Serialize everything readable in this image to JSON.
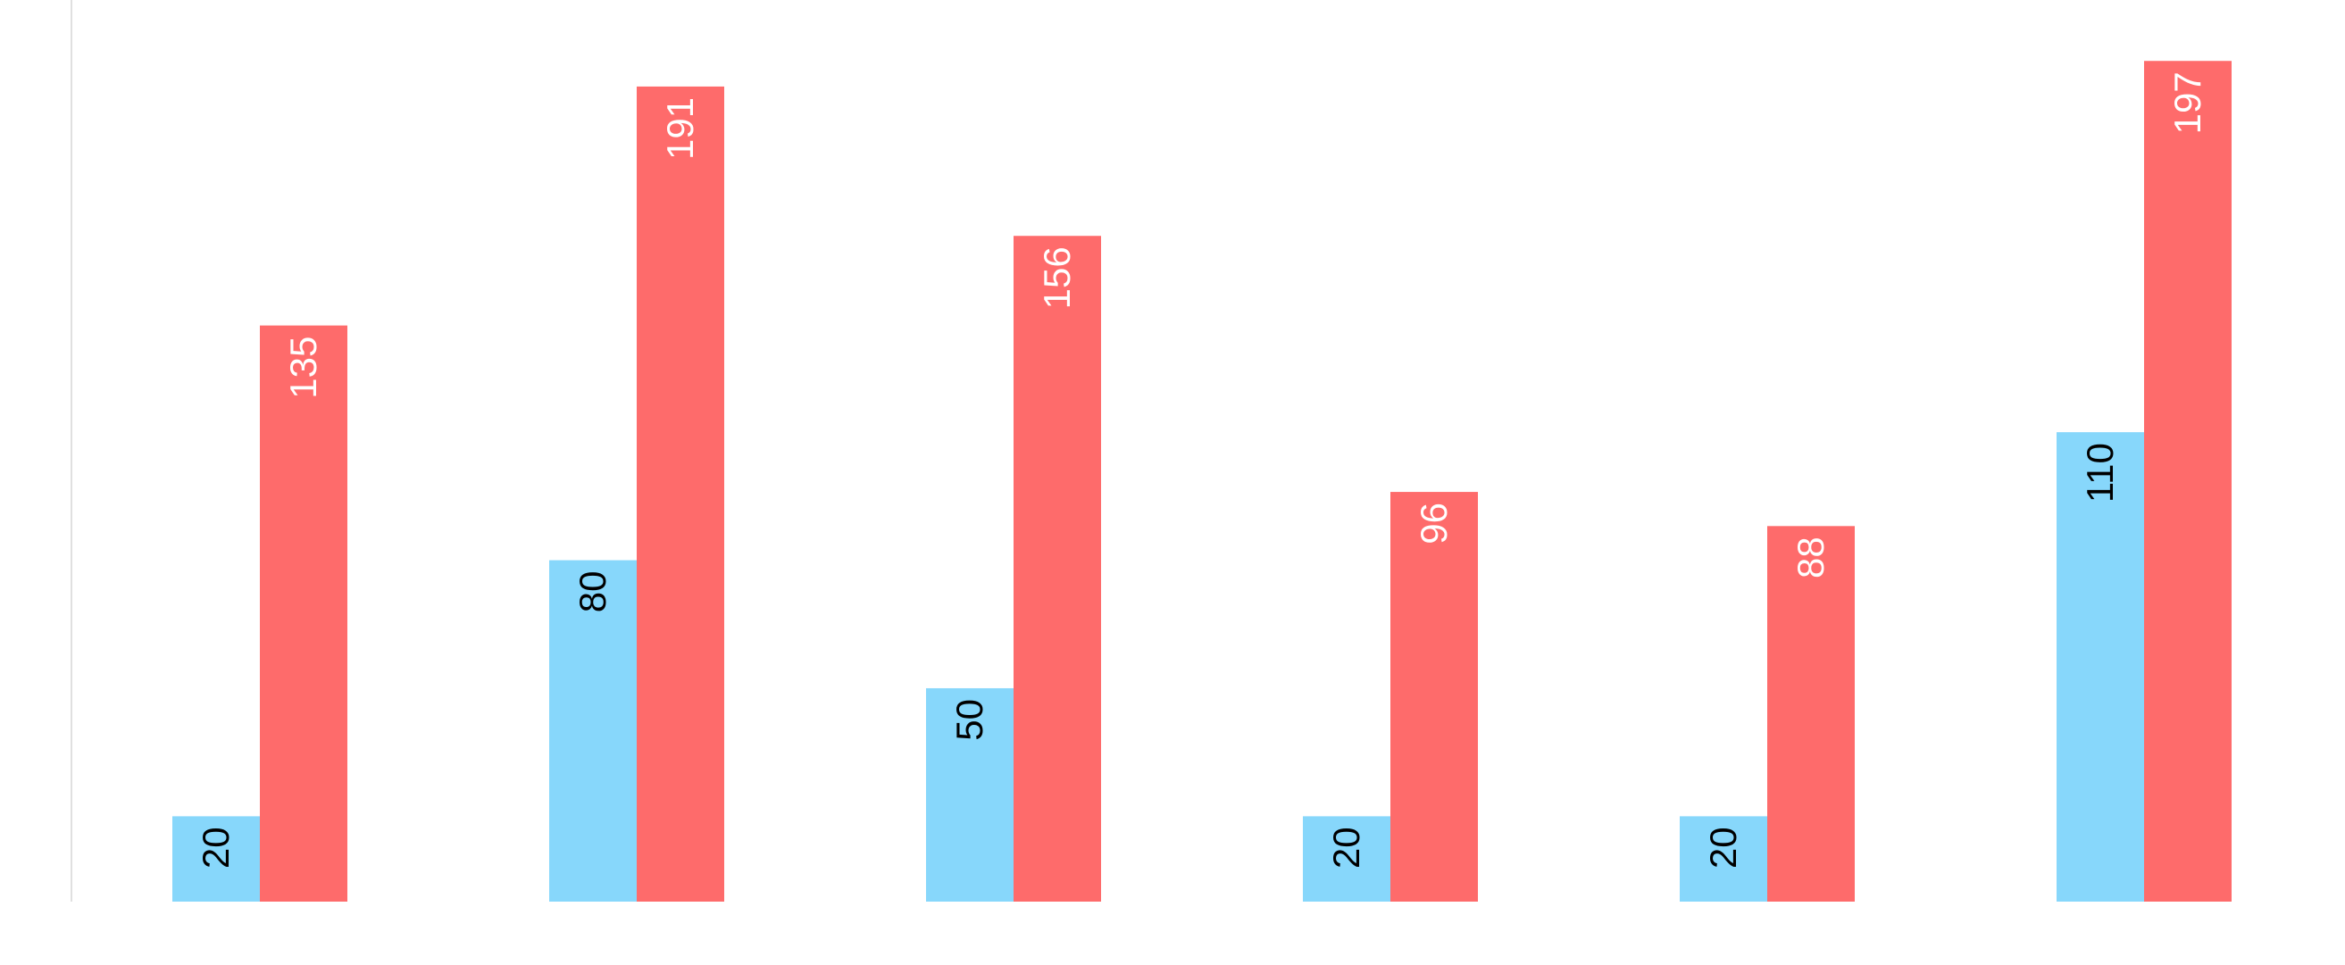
{
  "chart_data": {
    "type": "bar",
    "title": "",
    "xlabel": "",
    "ylabel": "",
    "categories": [
      "",
      "",
      "",
      "",
      "",
      ""
    ],
    "series": [
      {
        "values": [
          20,
          80,
          50,
          20,
          20,
          110
        ],
        "color": "#87d7fb",
        "label_color": "#000000"
      },
      {
        "values": [
          135,
          191,
          156,
          96,
          88,
          197
        ],
        "color": "#fe6b6b",
        "label_color": "#ffffff"
      }
    ],
    "ylim": [
      0,
      205
    ],
    "grid": false,
    "legend": "none",
    "data_labels": "inside-top-rotated",
    "axis_color": "#e0e0e0",
    "faint_text_color": "#f2f2f2"
  }
}
